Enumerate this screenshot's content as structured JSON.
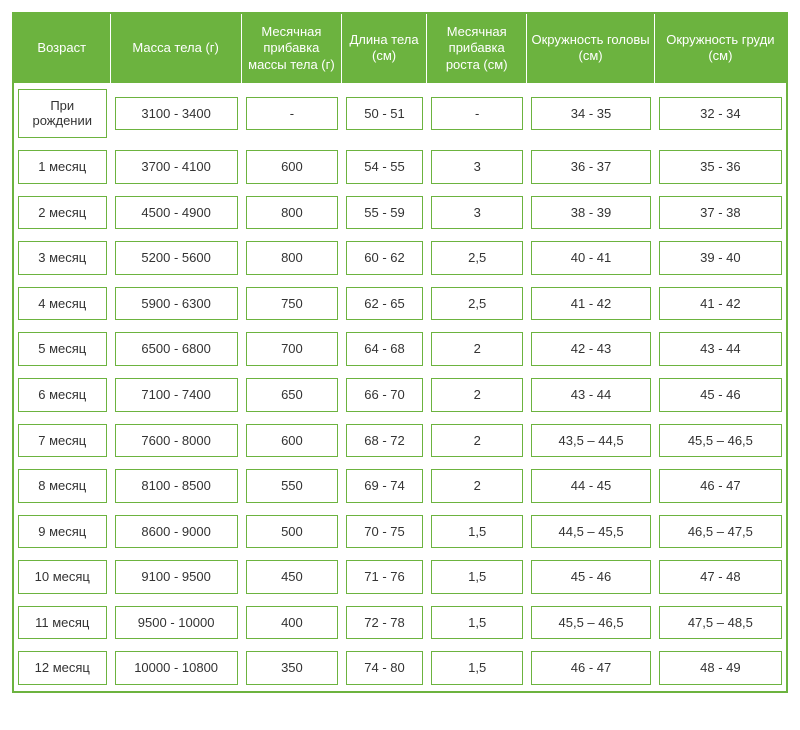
{
  "table": {
    "header_bg": "#6cb33f",
    "header_color": "#ffffff",
    "cell_border_color": "#6cb33f",
    "columns": [
      "Возраст",
      "Масса тела (г)",
      "Месячная прибавка массы тела (г)",
      "Длина тела (см)",
      "Месячная прибавка роста (см)",
      "Окружность головы (см)",
      "Окружность груди (см)"
    ],
    "rows": [
      [
        "При рождении",
        "3100 - 3400",
        "-",
        "50 - 51",
        "-",
        "34 - 35",
        "32 - 34"
      ],
      [
        "1 месяц",
        "3700 - 4100",
        "600",
        "54 - 55",
        "3",
        "36 - 37",
        "35 - 36"
      ],
      [
        "2 месяц",
        "4500 - 4900",
        "800",
        "55 - 59",
        "3",
        "38 - 39",
        "37 - 38"
      ],
      [
        "3 месяц",
        "5200 - 5600",
        "800",
        "60 - 62",
        "2,5",
        "40 - 41",
        "39 - 40"
      ],
      [
        "4 месяц",
        "5900 - 6300",
        "750",
        "62 - 65",
        "2,5",
        "41 - 42",
        "41 - 42"
      ],
      [
        "5 месяц",
        "6500 - 6800",
        "700",
        "64 - 68",
        "2",
        "42 - 43",
        "43 - 44"
      ],
      [
        "6 месяц",
        "7100 - 7400",
        "650",
        "66 - 70",
        "2",
        "43 - 44",
        "45 - 46"
      ],
      [
        "7 месяц",
        "7600 - 8000",
        "600",
        "68 - 72",
        "2",
        "43,5 – 44,5",
        "45,5 – 46,5"
      ],
      [
        "8 месяц",
        "8100 - 8500",
        "550",
        "69 - 74",
        "2",
        "44 - 45",
        "46 - 47"
      ],
      [
        "9 месяц",
        "8600 - 9000",
        "500",
        "70 - 75",
        "1,5",
        "44,5 – 45,5",
        "46,5 – 47,5"
      ],
      [
        "10 месяц",
        "9100 - 9500",
        "450",
        "71 - 76",
        "1,5",
        "45 - 46",
        "47 - 48"
      ],
      [
        "11 месяц",
        "9500 - 10000",
        "400",
        "72 - 78",
        "1,5",
        "45,5 – 46,5",
        "47,5 – 48,5"
      ],
      [
        "12 месяц",
        "10000 - 10800",
        "350",
        "74 - 80",
        "1,5",
        "46 - 47",
        "48 - 49"
      ]
    ]
  }
}
